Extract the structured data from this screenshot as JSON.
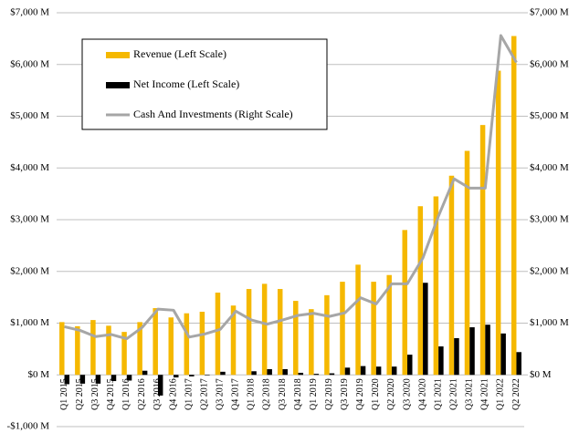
{
  "chart_data": {
    "type": "bar_line",
    "categories": [
      "Q1 2015",
      "Q2 2015",
      "Q3 2015",
      "Q4 2015",
      "Q1 2016",
      "Q2 2016",
      "Q3 2016",
      "Q4 2016",
      "Q1 2017",
      "Q2 2017",
      "Q3 2017",
      "Q4 2017",
      "Q1 2018",
      "Q2 2018",
      "Q3 2018",
      "Q4 2018",
      "Q1 2019",
      "Q2 2019",
      "Q3 2019",
      "Q4 2019",
      "Q1 2020",
      "Q2 2020",
      "Q3 2020",
      "Q4 2020",
      "Q1 2021",
      "Q2 2021",
      "Q3 2021",
      "Q4 2021",
      "Q1 2022",
      "Q2 2022"
    ],
    "series": [
      {
        "name": "Revenue (Left Scale)",
        "color": "#f5b800",
        "kind": "bar",
        "values": [
          1020,
          940,
          1060,
          950,
          830,
          1020,
          1290,
          1110,
          1190,
          1220,
          1590,
          1340,
          1660,
          1760,
          1660,
          1430,
          1270,
          1540,
          1800,
          2130,
          1800,
          1930,
          2800,
          3260,
          3450,
          3850,
          4330,
          4830,
          5880,
          6550
        ]
      },
      {
        "name": "Net Income (Left Scale)",
        "color": "#000000",
        "kind": "bar",
        "values": [
          -180,
          -170,
          -170,
          -120,
          -110,
          80,
          -400,
          -50,
          -30,
          -10,
          60,
          0,
          70,
          110,
          110,
          40,
          20,
          30,
          140,
          170,
          160,
          160,
          390,
          1780,
          550,
          710,
          920,
          970,
          800,
          440
        ]
      },
      {
        "name": "Cash And Investments (Right Scale)",
        "color": "#a6a6a6",
        "kind": "line",
        "axis": "y2",
        "values": [
          930,
          860,
          740,
          780,
          700,
          920,
          1270,
          1250,
          730,
          790,
          880,
          1230,
          1060,
          980,
          1060,
          1150,
          1190,
          1130,
          1200,
          1490,
          1370,
          1760,
          1760,
          2260,
          3070,
          3790,
          3610,
          3610,
          6560,
          6040
        ]
      }
    ],
    "ylim": [
      -1000,
      7000
    ],
    "yticks": [
      {
        "value": -1000,
        "label": "-$1,000 M"
      },
      {
        "value": 0,
        "label": "$0 M"
      },
      {
        "value": 1000,
        "label": "$1,000 M"
      },
      {
        "value": 2000,
        "label": "$2,000 M"
      },
      {
        "value": 3000,
        "label": "$3,000 M"
      },
      {
        "value": 4000,
        "label": "$4,000 M"
      },
      {
        "value": 5000,
        "label": "$5,000 M"
      },
      {
        "value": 6000,
        "label": "$6,000 M"
      },
      {
        "value": 7000,
        "label": "$7,000 M"
      }
    ],
    "y2lim": [
      -1000,
      7000
    ],
    "y2ticks": [
      {
        "value": 0,
        "label": "$0 M"
      },
      {
        "value": 1000,
        "label": "$1,000 M"
      },
      {
        "value": 2000,
        "label": "$2,000 M"
      },
      {
        "value": 3000,
        "label": "$3,000 M"
      },
      {
        "value": 4000,
        "label": "$4,000 M"
      },
      {
        "value": 5000,
        "label": "$5,000 M"
      },
      {
        "value": 6000,
        "label": "$6,000 M"
      },
      {
        "value": 7000,
        "label": "$7,000 M"
      }
    ],
    "grid": true,
    "legend": "upper left"
  }
}
